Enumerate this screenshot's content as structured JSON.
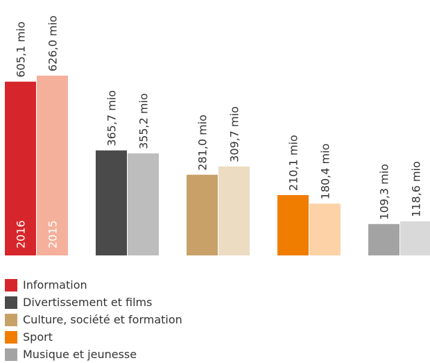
{
  "chart_data": {
    "type": "bar",
    "categories": [
      "Information",
      "Divertissement et films",
      "Culture, société et formation",
      "Sport",
      "Musique et jeunesse"
    ],
    "years": [
      "2016",
      "2015"
    ],
    "values_2016": [
      605.1,
      365.7,
      281.0,
      210.1,
      109.3
    ],
    "values_2015": [
      626.0,
      355.2,
      309.7,
      180.4,
      118.6
    ],
    "value_labels_2016": [
      "605,1 mio",
      "365,7 mio",
      "281,0 mio",
      "210,1 mio",
      "109,3 mio"
    ],
    "value_labels_2015": [
      "626,0 mio",
      "355,2 mio",
      "309,7 mio",
      "180,4 mio",
      "118,6 mio"
    ],
    "colors_2016": [
      "#d7262b",
      "#4a4a4a",
      "#c8a169",
      "#f07d00",
      "#a3a3a3"
    ],
    "colors_2015": [
      "#f5b09b",
      "#bdbdbd",
      "#ecdcc1",
      "#fdd2a6",
      "#d9d9d9"
    ],
    "ylim": [
      0,
      626.0
    ],
    "grid": false,
    "legend_placement": "bottom-left"
  },
  "legend": {
    "items": [
      {
        "label": "Information",
        "color": "#d7262b"
      },
      {
        "label": "Divertissement et films",
        "color": "#4a4a4a"
      },
      {
        "label": "Culture, société et formation",
        "color": "#c8a169"
      },
      {
        "label": "Sport",
        "color": "#f07d00"
      },
      {
        "label": "Musique et jeunesse",
        "color": "#a3a3a3"
      }
    ]
  }
}
